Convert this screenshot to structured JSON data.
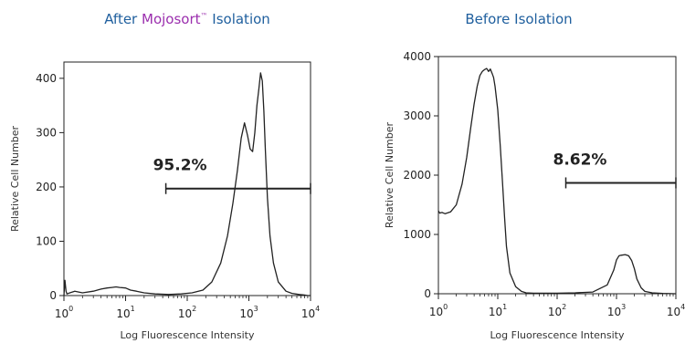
{
  "colors": {
    "title": "#1f5f9e",
    "brand": "#9b2fae",
    "frame": "#222222",
    "trace": "#222222"
  },
  "chart_data": [
    {
      "type": "line",
      "title_parts": {
        "before": "After ",
        "brand": "Mojosort",
        "tm": "™",
        "after": " Isolation"
      },
      "xlabel": "Log Fluorescence Intensity",
      "ylabel": "Relative Cell Number",
      "xscale": "log",
      "xlim": [
        1,
        10000
      ],
      "ylim": [
        0,
        430
      ],
      "yticks": [
        0,
        100,
        200,
        300,
        400
      ],
      "xtick_base": "10",
      "xtick_exps": [
        "0",
        "1",
        "2",
        "3",
        "4"
      ],
      "gate": {
        "label": "95.2%",
        "x_start": 45,
        "x_end": 10000,
        "y": 197
      },
      "x": [
        1.0,
        1.04,
        1.08,
        1.12,
        1.25,
        1.5,
        2,
        3,
        4,
        5,
        6,
        7,
        8,
        10,
        12,
        15,
        20,
        30,
        50,
        80,
        120,
        180,
        250,
        350,
        450,
        550,
        650,
        750,
        850,
        950,
        1050,
        1150,
        1250,
        1350,
        1450,
        1550,
        1650,
        1750,
        1850,
        2000,
        2200,
        2500,
        3000,
        4000,
        5000,
        6500,
        8000,
        9000,
        10000
      ],
      "y": [
        0,
        28,
        8,
        3,
        5,
        8,
        5,
        8,
        12,
        14,
        15,
        16,
        15,
        14,
        10,
        8,
        5,
        3,
        2,
        3,
        5,
        10,
        25,
        60,
        110,
        170,
        230,
        290,
        318,
        295,
        270,
        265,
        300,
        350,
        380,
        410,
        395,
        340,
        270,
        180,
        110,
        60,
        25,
        8,
        4,
        2,
        1,
        0,
        0
      ]
    },
    {
      "type": "line",
      "title_parts": {
        "before": "Before Isolation",
        "brand": "",
        "tm": "",
        "after": ""
      },
      "xlabel": "Log Fluorescence Intensity",
      "ylabel": "Relative Cell Number",
      "xscale": "log",
      "xlim": [
        1,
        10000
      ],
      "ylim": [
        0,
        4000
      ],
      "yticks": [
        0,
        1000,
        2000,
        3000,
        4000
      ],
      "xtick_base": "10",
      "xtick_exps": [
        "0",
        "1",
        "2",
        "3",
        "4"
      ],
      "gate": {
        "label": "8.62%",
        "x_start": 140,
        "x_end": 10000,
        "y": 1870
      },
      "x": [
        1.0,
        1.05,
        1.15,
        1.3,
        1.6,
        2,
        2.5,
        3,
        3.5,
        4,
        4.5,
        5,
        5.5,
        6,
        6.5,
        7,
        7.5,
        8,
        8.5,
        9,
        10,
        11,
        12,
        13,
        14,
        16,
        20,
        25,
        30,
        40,
        60,
        100,
        200,
        400,
        700,
        900,
        1000,
        1100,
        1200,
        1400,
        1600,
        1800,
        2000,
        2200,
        2600,
        3000,
        4000,
        6000,
        10000
      ],
      "y": [
        1400,
        1360,
        1370,
        1350,
        1380,
        1500,
        1850,
        2300,
        2800,
        3200,
        3500,
        3680,
        3750,
        3780,
        3800,
        3750,
        3790,
        3720,
        3650,
        3500,
        3100,
        2500,
        1900,
        1300,
        800,
        350,
        120,
        40,
        15,
        10,
        10,
        10,
        15,
        30,
        150,
        400,
        570,
        640,
        650,
        660,
        640,
        560,
        420,
        250,
        100,
        40,
        15,
        5,
        0
      ]
    }
  ]
}
